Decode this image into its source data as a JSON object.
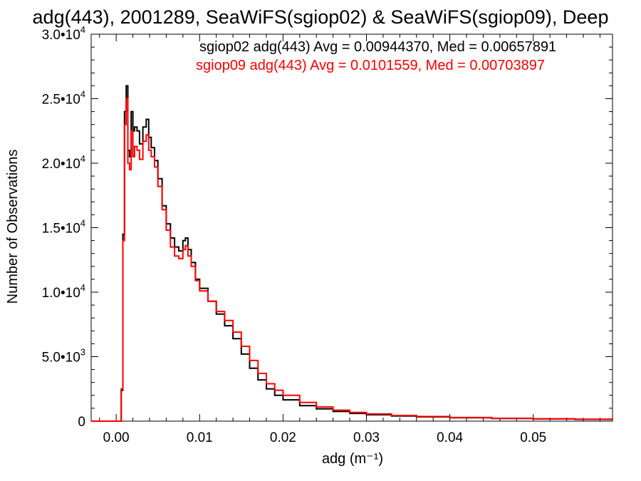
{
  "chart_data": {
    "type": "line",
    "step": true,
    "title": "adg(443), 2001289, SeaWiFS(sgiop02) & SeaWiFS(sgiop09), Deep",
    "xlabel": "adg (m⁻¹)",
    "ylabel": "Number of Observations",
    "xlim": [
      -0.003,
      0.0595
    ],
    "ylim": [
      0,
      30000
    ],
    "xticks": [
      {
        "value": 0.0,
        "label": "0.00"
      },
      {
        "value": 0.01,
        "label": "0.01"
      },
      {
        "value": 0.02,
        "label": "0.02"
      },
      {
        "value": 0.03,
        "label": "0.03"
      },
      {
        "value": 0.04,
        "label": "0.04"
      },
      {
        "value": 0.05,
        "label": "0.05"
      }
    ],
    "yticks": [
      {
        "value": 0,
        "mant": "0",
        "exp": ""
      },
      {
        "value": 5000,
        "mant": "5.0•10",
        "exp": "3"
      },
      {
        "value": 10000,
        "mant": "1.0•10",
        "exp": "4"
      },
      {
        "value": 15000,
        "mant": "1.5•10",
        "exp": "4"
      },
      {
        "value": 20000,
        "mant": "2.0•10",
        "exp": "4"
      },
      {
        "value": 25000,
        "mant": "2.5•10",
        "exp": "4"
      },
      {
        "value": 30000,
        "mant": "3.0•10",
        "exp": "4"
      }
    ],
    "annotations": [
      {
        "text": "sgiop02 adg(443) Avg = 0.00944370, Med = 0.00657891",
        "color": "#000000"
      },
      {
        "text": "sgiop09 adg(443) Avg = 0.0101559, Med = 0.00703897",
        "color": "#ff0000"
      }
    ],
    "series": [
      {
        "color": "#000000",
        "points": [
          [
            -0.003,
            0
          ],
          [
            0.0004,
            0
          ],
          [
            0.0006,
            2400
          ],
          [
            0.0008,
            14500
          ],
          [
            0.001,
            24000
          ],
          [
            0.0012,
            26000
          ],
          [
            0.0014,
            21000
          ],
          [
            0.0016,
            20500
          ],
          [
            0.0018,
            24000
          ],
          [
            0.002,
            22500
          ],
          [
            0.0022,
            22800
          ],
          [
            0.0025,
            22500
          ],
          [
            0.0028,
            21500
          ],
          [
            0.0032,
            22800
          ],
          [
            0.0036,
            23400
          ],
          [
            0.0039,
            22000
          ],
          [
            0.0042,
            21200
          ],
          [
            0.0046,
            20200
          ],
          [
            0.005,
            18800
          ],
          [
            0.0055,
            16700
          ],
          [
            0.006,
            15300
          ],
          [
            0.0065,
            14200
          ],
          [
            0.007,
            13500
          ],
          [
            0.0075,
            13200
          ],
          [
            0.008,
            14000
          ],
          [
            0.0083,
            14200
          ],
          [
            0.0086,
            13300
          ],
          [
            0.009,
            12300
          ],
          [
            0.0095,
            11000
          ],
          [
            0.01,
            10300
          ],
          [
            0.011,
            9300
          ],
          [
            0.012,
            8300
          ],
          [
            0.013,
            7400
          ],
          [
            0.014,
            6400
          ],
          [
            0.015,
            5200
          ],
          [
            0.016,
            4100
          ],
          [
            0.017,
            3200
          ],
          [
            0.018,
            2500
          ],
          [
            0.019,
            2000
          ],
          [
            0.02,
            1650
          ],
          [
            0.022,
            1200
          ],
          [
            0.024,
            950
          ],
          [
            0.026,
            750
          ],
          [
            0.028,
            600
          ],
          [
            0.03,
            500
          ],
          [
            0.033,
            400
          ],
          [
            0.036,
            330
          ],
          [
            0.04,
            260
          ],
          [
            0.045,
            210
          ],
          [
            0.05,
            170
          ],
          [
            0.055,
            140
          ],
          [
            0.0595,
            120
          ]
        ]
      },
      {
        "color": "#ff0000",
        "points": [
          [
            -0.003,
            0
          ],
          [
            0.0004,
            0
          ],
          [
            0.0006,
            2500
          ],
          [
            0.0008,
            14000
          ],
          [
            0.001,
            23000
          ],
          [
            0.0012,
            25000
          ],
          [
            0.0014,
            20000
          ],
          [
            0.0016,
            19500
          ],
          [
            0.0018,
            22500
          ],
          [
            0.002,
            20500
          ],
          [
            0.0022,
            21300
          ],
          [
            0.0025,
            21000
          ],
          [
            0.0028,
            20300
          ],
          [
            0.0032,
            21700
          ],
          [
            0.0036,
            22200
          ],
          [
            0.0039,
            21000
          ],
          [
            0.0042,
            20500
          ],
          [
            0.0046,
            19700
          ],
          [
            0.005,
            18200
          ],
          [
            0.0055,
            16400
          ],
          [
            0.006,
            14800
          ],
          [
            0.0065,
            13500
          ],
          [
            0.007,
            12800
          ],
          [
            0.0075,
            12600
          ],
          [
            0.008,
            13300
          ],
          [
            0.0083,
            13600
          ],
          [
            0.0086,
            12800
          ],
          [
            0.009,
            12000
          ],
          [
            0.0095,
            10900
          ],
          [
            0.01,
            10100
          ],
          [
            0.011,
            9300
          ],
          [
            0.012,
            8500
          ],
          [
            0.013,
            7800
          ],
          [
            0.014,
            6900
          ],
          [
            0.015,
            5800
          ],
          [
            0.016,
            4700
          ],
          [
            0.017,
            3700
          ],
          [
            0.018,
            2900
          ],
          [
            0.019,
            2400
          ],
          [
            0.02,
            2000
          ],
          [
            0.022,
            1450
          ],
          [
            0.024,
            1100
          ],
          [
            0.026,
            850
          ],
          [
            0.028,
            680
          ],
          [
            0.03,
            560
          ],
          [
            0.033,
            440
          ],
          [
            0.036,
            360
          ],
          [
            0.04,
            280
          ],
          [
            0.045,
            220
          ],
          [
            0.05,
            180
          ],
          [
            0.055,
            150
          ],
          [
            0.0595,
            130
          ]
        ]
      }
    ]
  }
}
